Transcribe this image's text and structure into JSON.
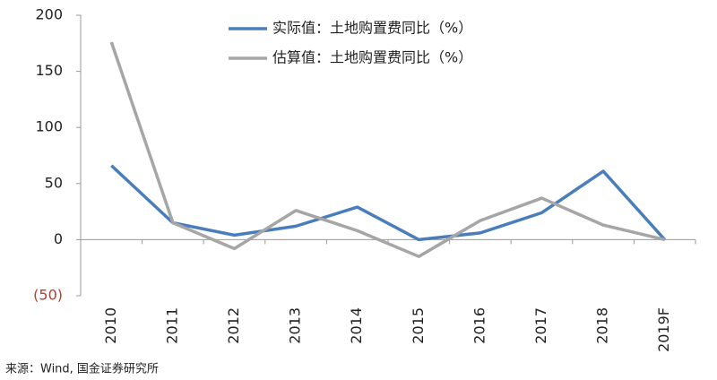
{
  "chart_data": {
    "type": "line",
    "categories": [
      "2010",
      "2011",
      "2012",
      "2013",
      "2014",
      "2015",
      "2016",
      "2017",
      "2018",
      "2019F"
    ],
    "series": [
      {
        "name": "实际值：土地购置费同比（%）",
        "color": "#4a7ebb",
        "values": [
          66,
          15,
          4,
          12,
          29,
          0,
          6,
          24,
          61,
          0
        ]
      },
      {
        "name": "估算值：土地购置费同比（%）",
        "color": "#a6a6a6",
        "values": [
          176,
          15,
          -8,
          26,
          8,
          -15,
          17,
          37,
          13,
          0
        ]
      }
    ],
    "ylim": [
      -50,
      200
    ],
    "yticks": [
      {
        "value": -50,
        "label": "(50)"
      },
      0,
      50,
      100,
      150,
      200
    ],
    "grid": false,
    "legend": "top",
    "source": "来源：Wind, 国金证券研究所"
  }
}
